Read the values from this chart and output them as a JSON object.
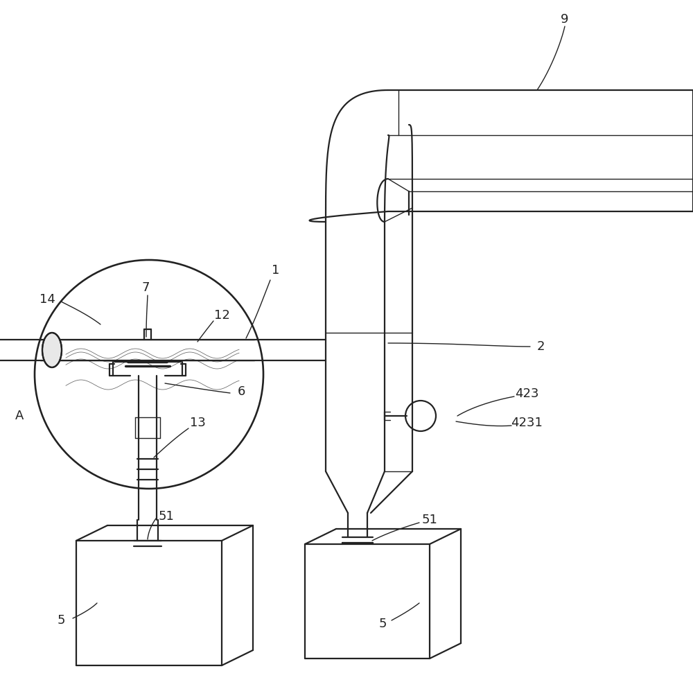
{
  "bg_color": "#ffffff",
  "line_color": "#222222",
  "lw": 1.6,
  "tlw": 1.0,
  "fs": 13,
  "fig_w": 10.0,
  "fig_h": 9.94
}
